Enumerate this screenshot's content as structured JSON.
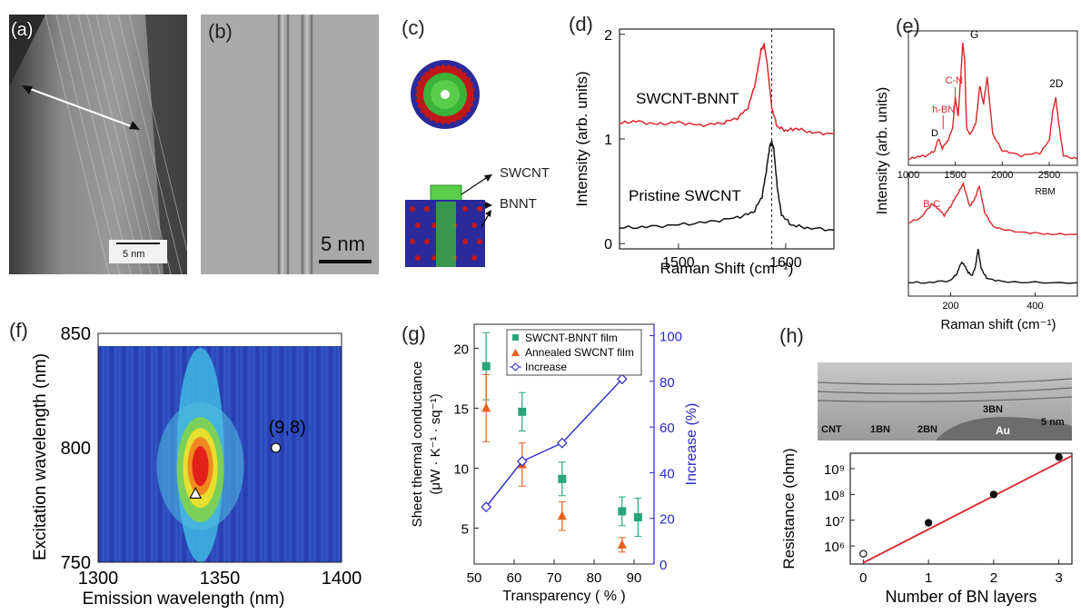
{
  "panels": {
    "a": {
      "label": "(a)",
      "scalebar": "5 nm"
    },
    "b": {
      "label": "(b)",
      "scalebar": "5 nm"
    },
    "c": {
      "label": "(c)",
      "callouts": [
        "SWCNT",
        "BNNT"
      ]
    },
    "d": {
      "label": "(d)"
    },
    "e": {
      "label": "(e)"
    },
    "f": {
      "label": "(f)"
    },
    "g": {
      "label": "(g)"
    },
    "h": {
      "label": "(h)",
      "tem_labels": [
        "CNT",
        "1BN",
        "2BN",
        "3BN",
        "Au",
        "5 nm"
      ]
    }
  },
  "colors": {
    "red": "#d9262a",
    "black": "#111111",
    "teal": "#2aa57a",
    "orange": "#e8601c",
    "blue": "#2727c8"
  },
  "chart_data": [
    {
      "id": "d",
      "type": "line",
      "xlabel": "Raman Shift (cm⁻¹)",
      "ylabel": "Intensity (arb. units)",
      "xlim": [
        1445,
        1645
      ],
      "ylim": [
        -0.05,
        2.05
      ],
      "xticks": [
        1500,
        1600
      ],
      "yticks": [
        0,
        1,
        2
      ],
      "annotations": [
        "SWCNT-BNNT",
        "Pristine SWCNT"
      ],
      "vline": 1587,
      "series": [
        {
          "name": "SWCNT-BNNT",
          "color": "#d9262a",
          "x": [
            1445,
            1460,
            1480,
            1500,
            1520,
            1540,
            1555,
            1565,
            1572,
            1577,
            1580,
            1583,
            1587,
            1592,
            1600,
            1610,
            1625,
            1645
          ],
          "y": [
            1.15,
            1.17,
            1.14,
            1.16,
            1.13,
            1.15,
            1.2,
            1.3,
            1.55,
            1.85,
            1.9,
            1.7,
            1.3,
            1.12,
            1.08,
            1.1,
            1.06,
            1.05
          ]
        },
        {
          "name": "Pristine SWCNT",
          "color": "#111111",
          "x": [
            1445,
            1470,
            1500,
            1530,
            1555,
            1570,
            1578,
            1582,
            1585,
            1587,
            1589,
            1592,
            1596,
            1605,
            1620,
            1645
          ],
          "y": [
            0.15,
            0.16,
            0.18,
            0.21,
            0.25,
            0.3,
            0.45,
            0.7,
            0.92,
            0.97,
            0.9,
            0.55,
            0.28,
            0.18,
            0.15,
            0.13
          ]
        }
      ]
    },
    {
      "id": "e-top",
      "type": "line",
      "ylabel": "Intensity (arb. units)",
      "xlim": [
        1000,
        2800
      ],
      "xticks": [
        1000,
        1500,
        2000,
        2500
      ],
      "annotations": [
        "G",
        "C-N",
        "h-BN",
        "D",
        "2D"
      ],
      "series": [
        {
          "name": "red",
          "color": "#d9262a",
          "x": [
            1000,
            1100,
            1200,
            1280,
            1320,
            1360,
            1420,
            1470,
            1500,
            1530,
            1560,
            1580,
            1600,
            1620,
            1660,
            1720,
            1760,
            1800,
            1840,
            1860,
            1900,
            2000,
            2200,
            2400,
            2500,
            2540,
            2570,
            2600,
            2650,
            2800
          ],
          "y": [
            0.05,
            0.07,
            0.08,
            0.12,
            0.22,
            0.14,
            0.2,
            0.3,
            0.55,
            0.4,
            0.75,
            1.0,
            0.85,
            0.3,
            0.25,
            0.35,
            0.65,
            0.5,
            0.72,
            0.55,
            0.25,
            0.12,
            0.08,
            0.1,
            0.2,
            0.45,
            0.55,
            0.35,
            0.08,
            0.05
          ]
        }
      ]
    },
    {
      "id": "e-bottom",
      "type": "line",
      "xlabel": "Raman shift (cm⁻¹)",
      "xlim": [
        100,
        500
      ],
      "xticks": [
        200,
        400
      ],
      "annotations": [
        "B-C",
        "RBM"
      ],
      "series": [
        {
          "name": "red",
          "color": "#d9262a",
          "x": [
            100,
            130,
            155,
            170,
            185,
            200,
            215,
            230,
            245,
            255,
            268,
            280,
            300,
            340,
            400,
            450,
            500
          ],
          "y": [
            0.65,
            0.7,
            0.82,
            0.78,
            0.72,
            0.8,
            0.9,
            1.0,
            0.8,
            0.85,
            0.98,
            0.75,
            0.62,
            0.58,
            0.56,
            0.55,
            0.55
          ]
        },
        {
          "name": "black",
          "color": "#111111",
          "x": [
            100,
            150,
            200,
            215,
            225,
            232,
            240,
            250,
            258,
            265,
            272,
            285,
            320,
            400,
            500
          ],
          "y": [
            0.12,
            0.12,
            0.14,
            0.2,
            0.3,
            0.28,
            0.22,
            0.18,
            0.25,
            0.42,
            0.25,
            0.16,
            0.13,
            0.12,
            0.12
          ]
        }
      ]
    },
    {
      "id": "f",
      "type": "heatmap",
      "xlabel": "Emission wavelength (nm)",
      "ylabel": "Excitation wavelength (nm)",
      "xlim": [
        1300,
        1400
      ],
      "ylim": [
        750,
        850
      ],
      "xticks": [
        1300,
        1350,
        1400
      ],
      "yticks": [
        750,
        800,
        850
      ],
      "annotations": [
        "(9,8)"
      ],
      "markers": [
        {
          "x": 1373,
          "y": 800,
          "shape": "circle"
        },
        {
          "x": 1340,
          "y": 780,
          "shape": "triangle"
        }
      ]
    },
    {
      "id": "g",
      "type": "scatter",
      "xlabel": "Transparency ( % )",
      "ylabel": "Sheet thermal conductance (μW · K⁻¹ · sq⁻¹)",
      "y2label": "Increase (%)",
      "xlim": [
        50,
        95
      ],
      "ylim": [
        2,
        22
      ],
      "y2lim": [
        0,
        105
      ],
      "xticks": [
        50,
        60,
        70,
        80,
        90
      ],
      "yticks": [
        5,
        10,
        15,
        20
      ],
      "y2ticks": [
        0,
        20,
        40,
        60,
        80,
        100
      ],
      "series": [
        {
          "name": "SWCNT-BNNT film",
          "color": "#2aa57a",
          "marker": "square",
          "x": [
            53,
            62,
            72,
            87,
            91
          ],
          "y": [
            18.5,
            14.7,
            9.1,
            6.4,
            5.9
          ],
          "err": [
            2.8,
            1.6,
            1.4,
            1.2,
            1.6
          ]
        },
        {
          "name": "Annealed SWCNT film",
          "color": "#e8601c",
          "marker": "triangle",
          "x": [
            53,
            62,
            72,
            87
          ],
          "y": [
            15.0,
            10.3,
            6.0,
            3.6
          ],
          "err": [
            2.8,
            1.8,
            1.2,
            0.6
          ]
        },
        {
          "name": "Increase",
          "color": "#2727c8",
          "marker": "diamond",
          "axis": "right",
          "x": [
            53,
            62,
            72,
            87
          ],
          "y": [
            25,
            45,
            53,
            81
          ]
        }
      ]
    },
    {
      "id": "h",
      "type": "scatter",
      "xlabel": "Number of BN layers",
      "ylabel": "Resistance (ohm)",
      "xlim": [
        -0.2,
        3.2
      ],
      "ylim": [
        5.3,
        9.6
      ],
      "log": true,
      "xticks": [
        0,
        1,
        2,
        3
      ],
      "yticks": [
        "10⁶",
        "10⁷",
        "10⁸",
        "10⁹"
      ],
      "series": [
        {
          "name": "points",
          "color": "#111111",
          "x": [
            0,
            1,
            2,
            3
          ],
          "y": [
            5.7,
            6.9,
            8.0,
            9.45
          ]
        },
        {
          "name": "fit",
          "color": "#d9262a",
          "x": [
            0,
            3.2
          ],
          "y": [
            5.35,
            9.5
          ]
        }
      ]
    }
  ]
}
